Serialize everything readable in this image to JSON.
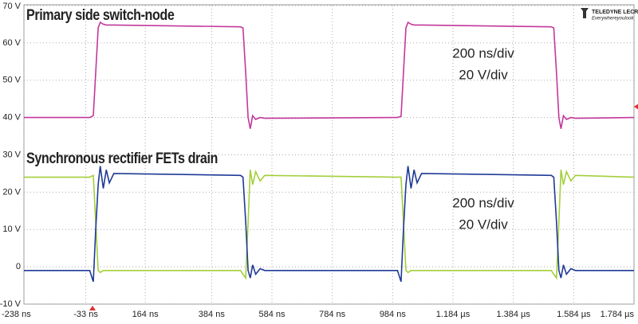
{
  "chart_data": {
    "type": "line",
    "annotations": [
      "Primary side switch-node",
      "Synchronous rectifier FETs drain",
      "200 ns/div",
      "20 V/div",
      "200 ns/div",
      "20 V/div",
      "TELEDYNE LECROY",
      "Everywhereyoulook"
    ],
    "x": [
      -238,
      -20,
      -8,
      0,
      8,
      15,
      25,
      35,
      45,
      60,
      480,
      488,
      497,
      505,
      512,
      520,
      530,
      545,
      560,
      1000,
      1012,
      1020,
      1028,
      1035,
      1045,
      1055,
      1065,
      1080,
      1510,
      1518,
      1527,
      1535,
      1542,
      1550,
      1560,
      1575,
      1590,
      1784
    ],
    "series": [
      {
        "color": "#c2389c",
        "values": [
          40,
          40,
          40.5,
          52,
          64,
          65.5,
          65,
          64.8,
          64.8,
          64.8,
          64.3,
          64,
          52,
          40,
          37,
          40.5,
          39.5,
          40,
          39.8,
          40,
          40.3,
          52,
          64,
          65.5,
          65,
          64.8,
          64.8,
          64.8,
          64.3,
          64,
          52,
          40,
          37,
          40.5,
          39.5,
          40,
          39.8,
          40
        ]
      },
      {
        "color": "#a3cf3a",
        "values": [
          24,
          24,
          24.5,
          12,
          -1,
          -1.5,
          -1,
          -1,
          -1,
          -1,
          -1,
          -2,
          -3,
          12,
          26,
          22,
          25.5,
          23,
          24.5,
          24,
          24,
          12,
          -1,
          -1.5,
          -1,
          -1,
          -1,
          -1,
          -1,
          -2,
          -3,
          12,
          26,
          22,
          25.5,
          23,
          24.5,
          24
        ]
      },
      {
        "color": "#1f3a96",
        "values": [
          -1,
          -1,
          -4,
          10,
          22,
          27,
          21,
          26,
          22.5,
          25,
          24.5,
          24,
          12,
          -1,
          -3,
          0.5,
          -2,
          -0.5,
          -1,
          -1,
          -4,
          10,
          22,
          27,
          21,
          26,
          22.5,
          25,
          24.5,
          24,
          12,
          -1,
          -3,
          0.5,
          -2,
          -0.5,
          -1,
          -1
        ]
      }
    ],
    "xlim": [
      -238,
      1784
    ],
    "xticks": [
      {
        "value": -238,
        "label": "-238 ns"
      },
      {
        "value": -33,
        "label": "-33 ns"
      },
      {
        "value": 164,
        "label": "164 ns"
      },
      {
        "value": 384,
        "label": "384 ns"
      },
      {
        "value": 584,
        "label": "584 ns"
      },
      {
        "value": 784,
        "label": "784 ns"
      },
      {
        "value": 984,
        "label": "984 ns"
      },
      {
        "value": 1184,
        "label": "1.184 µs"
      },
      {
        "value": 1384,
        "label": "1.384 µs"
      },
      {
        "value": 1584,
        "label": "1.584 µs"
      },
      {
        "value": 1784,
        "label": "1.784 µs"
      }
    ],
    "ylim": [
      -10,
      70
    ],
    "yticks": [
      {
        "value": -10,
        "label": "-10 V"
      },
      0,
      {
        "value": 10,
        "label": "10 V"
      },
      {
        "value": 20,
        "label": "20 V"
      },
      {
        "value": 30,
        "label": "30 V"
      },
      {
        "value": 40,
        "label": "40 V"
      },
      {
        "value": 50,
        "label": "50 V"
      },
      {
        "value": 60,
        "label": "60 V"
      },
      {
        "value": 70,
        "label": "70 V"
      }
    ],
    "grid": true
  }
}
